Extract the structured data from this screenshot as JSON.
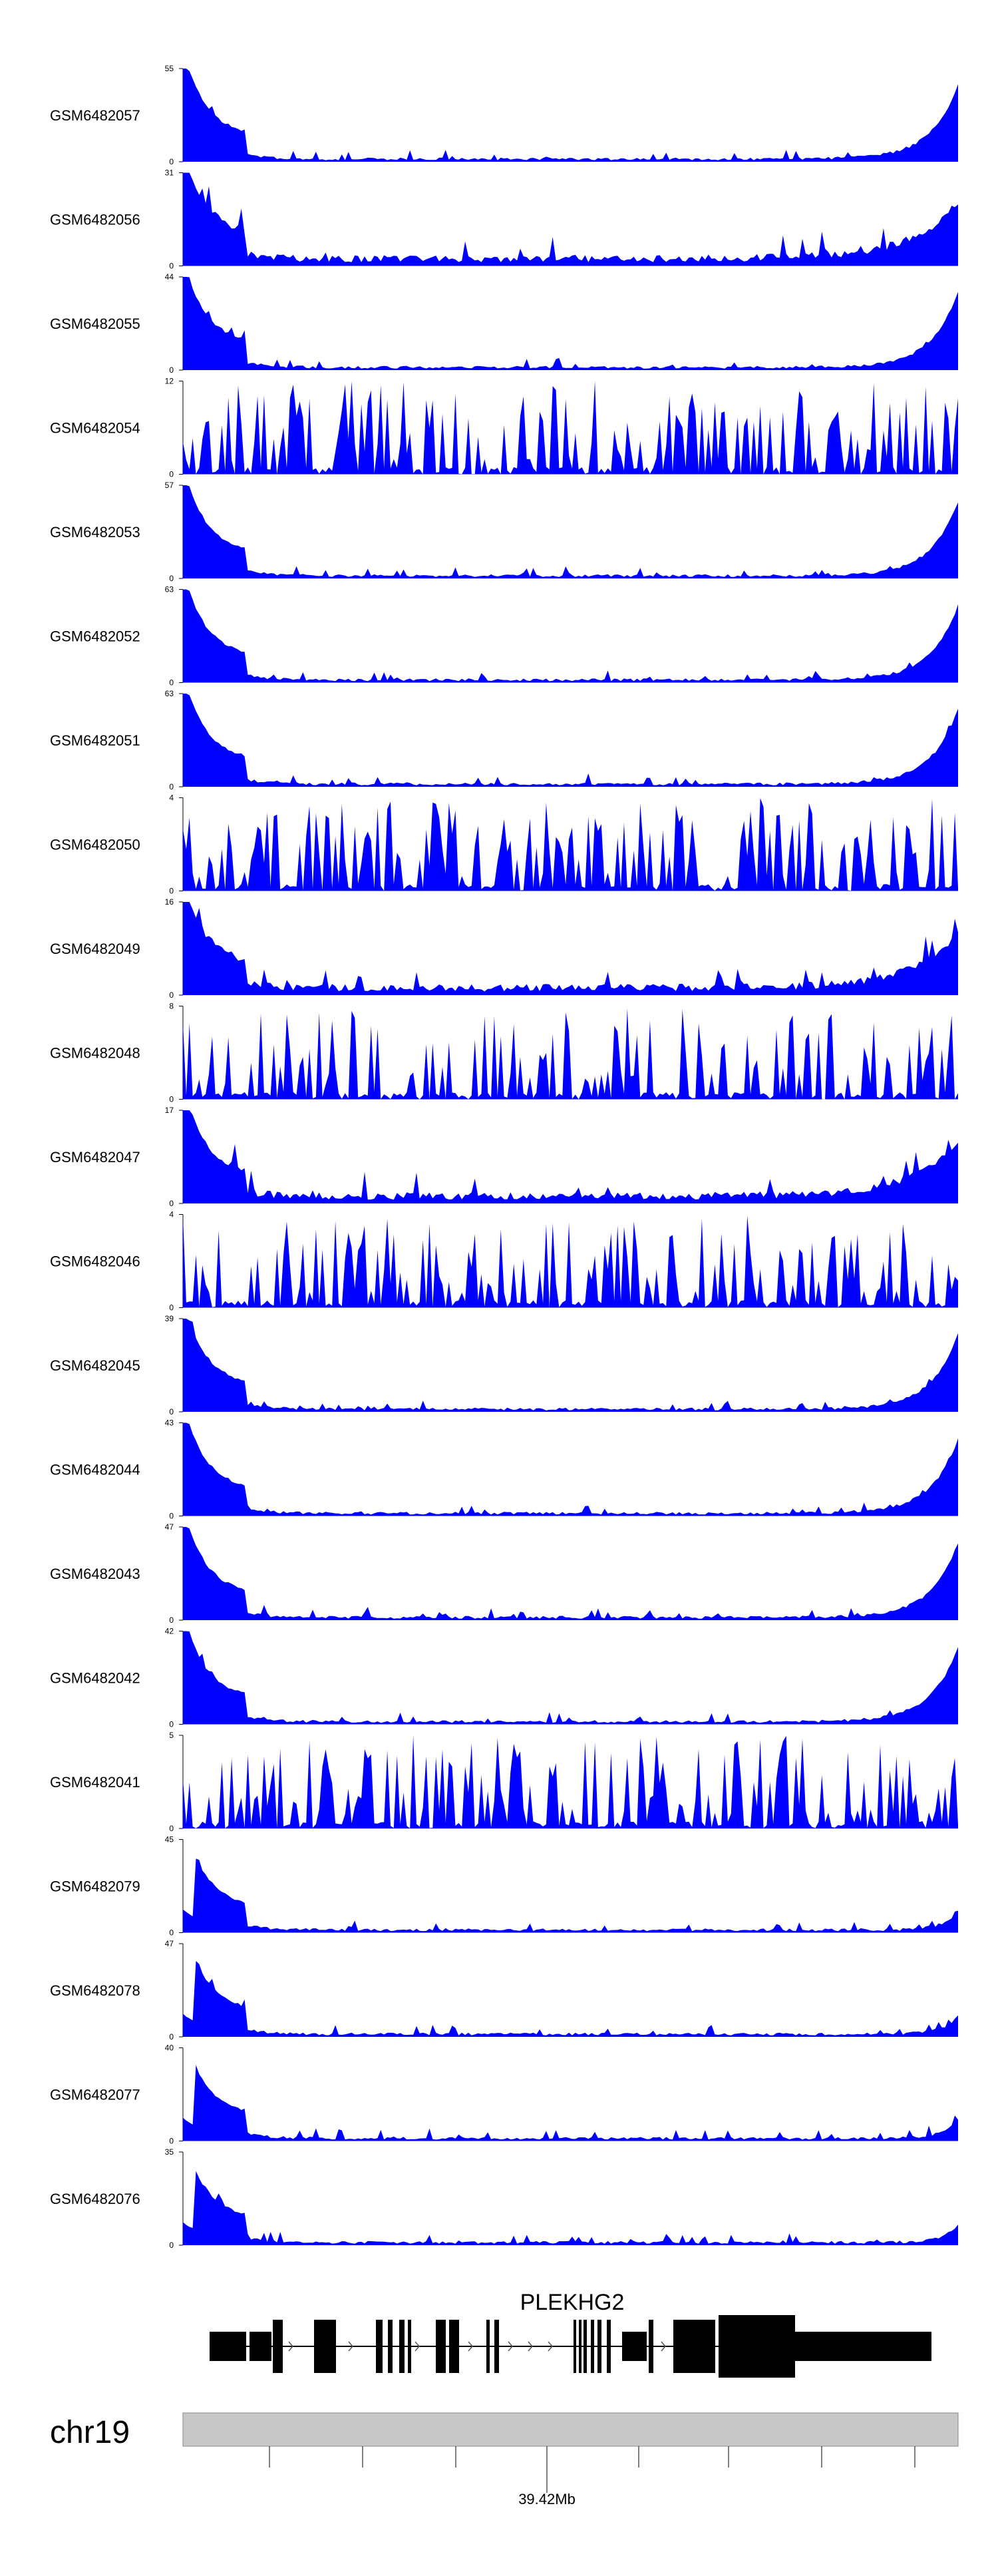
{
  "chart_data": {
    "type": "area",
    "series_color": "#0000ff",
    "tracks": [
      {
        "name": "GSM6482057",
        "ymax": 55,
        "profile": "q",
        "seed": 57
      },
      {
        "name": "GSM6482056",
        "ymax": 31,
        "profile": "m",
        "seed": 56
      },
      {
        "name": "GSM6482055",
        "ymax": 44,
        "profile": "q",
        "seed": 55
      },
      {
        "name": "GSM6482054",
        "ymax": 12,
        "profile": "n",
        "seed": 54
      },
      {
        "name": "GSM6482053",
        "ymax": 57,
        "profile": "q",
        "seed": 53
      },
      {
        "name": "GSM6482052",
        "ymax": 63,
        "profile": "q",
        "seed": 52
      },
      {
        "name": "GSM6482051",
        "ymax": 63,
        "profile": "q",
        "seed": 51
      },
      {
        "name": "GSM6482050",
        "ymax": 4,
        "profile": "n",
        "seed": 50
      },
      {
        "name": "GSM6482049",
        "ymax": 16,
        "profile": "m",
        "seed": 49
      },
      {
        "name": "GSM6482048",
        "ymax": 8,
        "profile": "n",
        "seed": 48
      },
      {
        "name": "GSM6482047",
        "ymax": 17,
        "profile": "m",
        "seed": 47
      },
      {
        "name": "GSM6482046",
        "ymax": 4,
        "profile": "n",
        "seed": 46
      },
      {
        "name": "GSM6482045",
        "ymax": 39,
        "profile": "q",
        "seed": 45
      },
      {
        "name": "GSM6482044",
        "ymax": 43,
        "profile": "q",
        "seed": 44
      },
      {
        "name": "GSM6482043",
        "ymax": 47,
        "profile": "q",
        "seed": 43
      },
      {
        "name": "GSM6482042",
        "ymax": 42,
        "profile": "q",
        "seed": 42
      },
      {
        "name": "GSM6482041",
        "ymax": 5,
        "profile": "n",
        "seed": 41
      },
      {
        "name": "GSM6482079",
        "ymax": 45,
        "profile": "l",
        "seed": 79
      },
      {
        "name": "GSM6482078",
        "ymax": 47,
        "profile": "l",
        "seed": 78
      },
      {
        "name": "GSM6482077",
        "ymax": 40,
        "profile": "l",
        "seed": 77
      },
      {
        "name": "GSM6482076",
        "ymax": 35,
        "profile": "l",
        "seed": 76
      }
    ],
    "gene": {
      "name": "PLEKHG2",
      "strand": "+"
    },
    "chromosome": "chr19",
    "position_label": "39.42Mb",
    "ymin_label": "0"
  }
}
